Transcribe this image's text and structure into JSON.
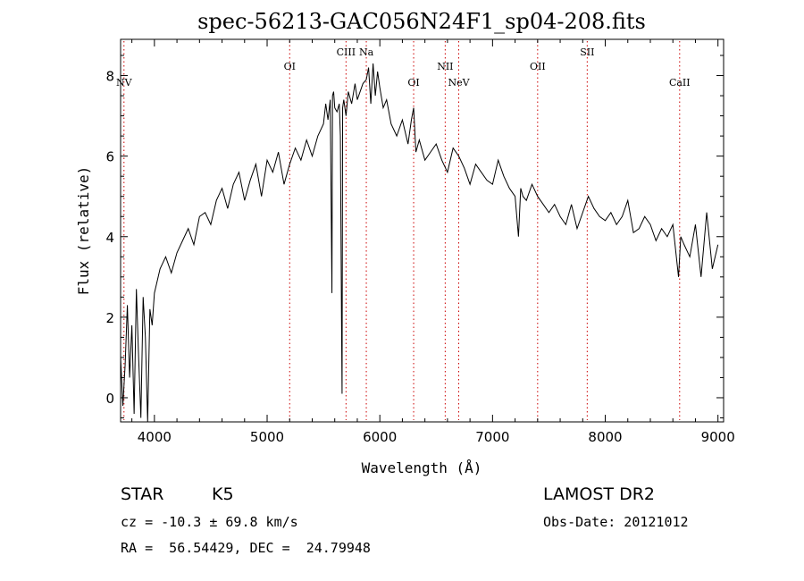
{
  "chart_data": {
    "type": "line",
    "title": "spec-56213-GAC056N24F1_sp04-208.fits",
    "xlabel": "Wavelength (Å)",
    "ylabel": "Flux (relative)",
    "xlim": [
      3700,
      9050
    ],
    "ylim": [
      -0.6,
      8.9
    ],
    "xticks": [
      "4000",
      "5000",
      "6000",
      "7000",
      "8000",
      "9000"
    ],
    "yticks": [
      "0",
      "2",
      "4",
      "6",
      "8"
    ],
    "grid": false,
    "line_color": "#000000",
    "marker_color": "#cc0000",
    "series": [
      {
        "x": [
          3700,
          3720,
          3740,
          3760,
          3780,
          3800,
          3820,
          3840,
          3860,
          3880,
          3900,
          3920,
          3940,
          3960,
          3980,
          4000,
          4050,
          4100,
          4150,
          4200,
          4250,
          4300,
          4350,
          4400,
          4450,
          4500,
          4550,
          4600,
          4650,
          4700,
          4750,
          4800,
          4850,
          4900,
          4950,
          5000,
          5050,
          5100,
          5150,
          5200,
          5250,
          5300,
          5350,
          5400,
          5450,
          5500,
          5520,
          5540,
          5560,
          5575,
          5580,
          5590,
          5600,
          5620,
          5640,
          5650,
          5660,
          5665,
          5670,
          5680,
          5700,
          5720,
          5750,
          5780,
          5800,
          5850,
          5880,
          5900,
          5920,
          5940,
          5960,
          5980,
          6000,
          6030,
          6060,
          6100,
          6150,
          6200,
          6250,
          6280,
          6300,
          6320,
          6350,
          6400,
          6450,
          6500,
          6550,
          6600,
          6650,
          6700,
          6750,
          6800,
          6850,
          6900,
          6950,
          7000,
          7050,
          7100,
          7150,
          7200,
          7230,
          7250,
          7270,
          7300,
          7350,
          7400,
          7450,
          7500,
          7550,
          7600,
          7650,
          7700,
          7750,
          7800,
          7850,
          7900,
          7950,
          8000,
          8050,
          8100,
          8150,
          8200,
          8250,
          8300,
          8350,
          8400,
          8450,
          8500,
          8550,
          8600,
          8650,
          8670,
          8700,
          8750,
          8800,
          8850,
          8900,
          8950,
          9000
        ],
        "y": [
          1.0,
          -0.2,
          0.8,
          2.3,
          0.5,
          1.8,
          -0.4,
          2.7,
          1.0,
          -0.5,
          2.5,
          1.5,
          -0.6,
          2.2,
          1.8,
          2.6,
          3.2,
          3.5,
          3.1,
          3.6,
          3.9,
          4.2,
          3.8,
          4.5,
          4.6,
          4.3,
          4.9,
          5.2,
          4.7,
          5.3,
          5.6,
          4.9,
          5.4,
          5.8,
          5.0,
          5.9,
          5.6,
          6.1,
          5.3,
          5.8,
          6.2,
          5.9,
          6.4,
          6.0,
          6.5,
          6.8,
          7.3,
          6.9,
          7.4,
          2.6,
          7.5,
          7.6,
          7.2,
          7.1,
          7.3,
          6.5,
          2.0,
          0.1,
          7.2,
          7.4,
          7.0,
          7.6,
          7.3,
          7.8,
          7.4,
          7.8,
          7.9,
          8.2,
          7.3,
          8.3,
          7.5,
          8.1,
          7.7,
          7.2,
          7.4,
          6.8,
          6.5,
          6.9,
          6.3,
          6.9,
          7.2,
          6.1,
          6.4,
          5.9,
          6.1,
          6.3,
          5.9,
          5.6,
          6.2,
          6.0,
          5.7,
          5.3,
          5.8,
          5.6,
          5.4,
          5.3,
          5.9,
          5.5,
          5.2,
          5.0,
          4.0,
          5.2,
          5.0,
          4.9,
          5.3,
          5.0,
          4.8,
          4.6,
          4.8,
          4.5,
          4.3,
          4.8,
          4.2,
          4.6,
          5.0,
          4.7,
          4.5,
          4.4,
          4.6,
          4.3,
          4.5,
          4.9,
          4.1,
          4.2,
          4.5,
          4.3,
          3.9,
          4.2,
          4.0,
          4.3,
          3.0,
          4.0,
          3.8,
          3.5,
          4.3,
          3.0,
          4.6,
          3.2,
          3.8
        ]
      }
    ],
    "markers": [
      {
        "label": "NV",
        "x": 3730,
        "row": "low"
      },
      {
        "label": "OI",
        "x": 5200,
        "row": "mid"
      },
      {
        "label": "CIII",
        "x": 5700,
        "row": "high"
      },
      {
        "label": "Na",
        "x": 5880,
        "row": "high"
      },
      {
        "label": "OI",
        "x": 6300,
        "row": "low"
      },
      {
        "label": "NII",
        "x": 6580,
        "row": "mid"
      },
      {
        "label": "NeV",
        "x": 6700,
        "row": "low"
      },
      {
        "label": "OII",
        "x": 7400,
        "row": "mid"
      },
      {
        "label": "SII",
        "x": 7840,
        "row": "high"
      },
      {
        "label": "CaII",
        "x": 8660,
        "row": "low"
      }
    ]
  },
  "info": {
    "object_type": "STAR",
    "subclass": "K5",
    "survey": "LAMOST DR2",
    "obs_date": "Obs-Date: 20121012",
    "velocity": "cz = -10.3 ± 69.8 km/s",
    "coords": "RA =  56.54429, DEC =  24.79948"
  }
}
